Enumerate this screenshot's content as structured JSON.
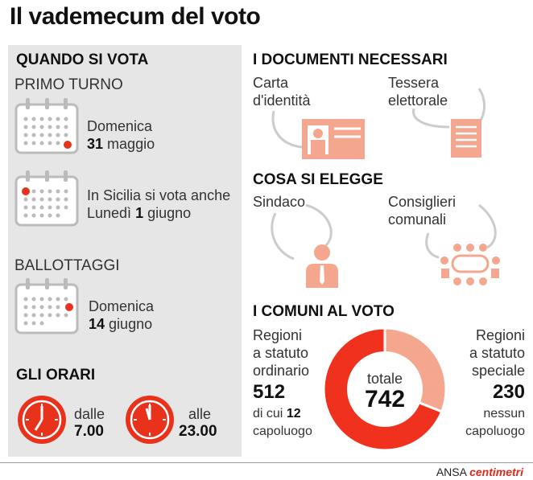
{
  "title": "Il vademecum del voto",
  "when": {
    "heading": "QUANDO SI VOTA",
    "first_round": "PRIMO TURNO",
    "date1_day": "Domenica",
    "date1_num": "31",
    "date1_month": "maggio",
    "sicily_line1": "In Sicilia si vota anche",
    "sicily_day": "Lunedì",
    "sicily_num": "1",
    "sicily_month": "giugno",
    "runoff": "BALLOTTAGGI",
    "runoff_day": "Domenica",
    "runoff_num": "14",
    "runoff_month": "giugno"
  },
  "hours": {
    "heading": "GLI ORARI",
    "from_label": "dalle",
    "from_time": "7.00",
    "to_label": "alle",
    "to_time": "23.00"
  },
  "documents": {
    "heading": "I DOCUMENTI NECESSARI",
    "id_card_l1": "Carta",
    "id_card_l2": "d'identità",
    "voter_card_l1": "Tessera",
    "voter_card_l2": "elettorale"
  },
  "elected": {
    "heading": "COSA SI ELEGGE",
    "mayor": "Sindaco",
    "councillors_l1": "Consiglieri",
    "councillors_l2": "comunali"
  },
  "municipalities": {
    "heading": "I COMUNI AL VOTO",
    "ordinary_l1": "Regioni",
    "ordinary_l2": "a statuto",
    "ordinary_l3": "ordinario",
    "ordinary_value": "512",
    "ordinary_note_pre": "di cui",
    "ordinary_note_num": "12",
    "ordinary_note_post": "capoluogo",
    "special_l1": "Regioni",
    "special_l2": "a statuto",
    "special_l3": "speciale",
    "special_value": "230",
    "special_note_l1": "nessun",
    "special_note_l2": "capoluogo",
    "total_label": "totale",
    "total_value": "742"
  },
  "chart_data": {
    "type": "pie",
    "slices": [
      {
        "label": "Regioni a statuto ordinario",
        "value": 512,
        "color": "#f0311d"
      },
      {
        "label": "Regioni a statuto speciale",
        "value": 230,
        "color": "#f4a68f"
      }
    ],
    "total": 742
  },
  "colors": {
    "accent": "#e8321c",
    "accent_light": "#f4a68f",
    "panel": "#e6e6e6"
  },
  "footer": {
    "source": "ANSA",
    "brand": "centimetri"
  }
}
